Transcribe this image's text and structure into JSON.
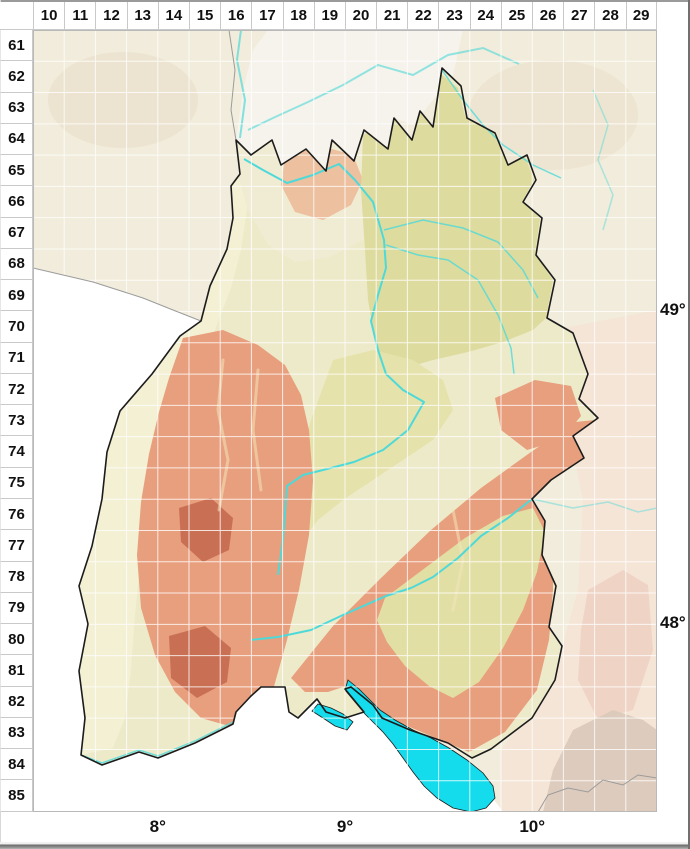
{
  "grid": {
    "column_labels": [
      "10",
      "11",
      "12",
      "13",
      "14",
      "15",
      "16",
      "17",
      "18",
      "19",
      "20",
      "21",
      "22",
      "23",
      "24",
      "25",
      "26",
      "27",
      "28",
      "29"
    ],
    "row_labels": [
      "61",
      "62",
      "63",
      "64",
      "65",
      "66",
      "67",
      "68",
      "69",
      "70",
      "71",
      "72",
      "73",
      "74",
      "75",
      "76",
      "77",
      "78",
      "79",
      "80",
      "81",
      "82",
      "83",
      "84",
      "85"
    ],
    "latitude_labels": [
      "49°",
      "48°"
    ],
    "longitude_labels": [
      "8°",
      "9°",
      "10°"
    ]
  },
  "colors": {
    "outside_bg": "#f1ecdb",
    "outside_blob": "#eae0c8",
    "outside_pale": "#f6f3ec",
    "outside_pink": "#f5e5d7",
    "outside_pink_deep": "#eed0c2",
    "alps_gray": "#d8c8b9",
    "no_data_white": "#ffffff",
    "lowland_plain": "#f3f0d3",
    "north_plain": "#f0ebd3",
    "state_base": "#edeaca",
    "hills_khaki": "#dedb9e",
    "mid_khaki": "#e5e2ab",
    "basin_khaki": "#e2dfa4",
    "odenwald_salmon": "#ecb28e",
    "upland_salmon": "#e89f7d",
    "mountain_maroon": "#c56a50",
    "valley_vein": "#f2e4bb",
    "river": "#4ed9d9",
    "lake": "#14dcec",
    "boundary": "#1c1c1c",
    "gray_border": "#9b9b9b",
    "grid_line": "#ffffff",
    "map_border": "#b9b9b9"
  }
}
